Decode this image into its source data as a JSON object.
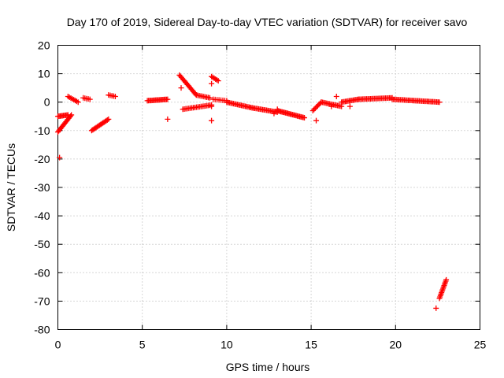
{
  "chart_data": {
    "type": "scatter",
    "title": "Day 170 of 2019, Sidereal Day-to-day VTEC variation (SDTVAR) for receiver savo",
    "xlabel": "GPS time / hours",
    "ylabel": "SDTVAR / TECUs",
    "xlim": [
      0,
      25
    ],
    "ylim": [
      -80,
      20
    ],
    "xticks": [
      0,
      5,
      10,
      15,
      20,
      25
    ],
    "yticks": [
      20,
      10,
      0,
      -10,
      -20,
      -30,
      -40,
      -50,
      -60,
      -70,
      -80
    ],
    "xtick_labels": [
      "0",
      "5",
      "10",
      "15",
      "20",
      "25"
    ],
    "ytick_labels": [
      "20",
      "10",
      "0",
      "-10",
      "-20",
      "-30",
      "-40",
      "-50",
      "-60",
      "-70",
      "-80"
    ],
    "grid": true,
    "marker": "+",
    "color": "#ff0000",
    "series": [
      {
        "name": "SDTVAR",
        "segments": [
          {
            "x": [
              0.0,
              0.8
            ],
            "y": [
              -10.5,
              -4.5
            ],
            "n": 16
          },
          {
            "x": [
              0.0,
              0.6
            ],
            "y": [
              -5.0,
              -4.5
            ],
            "n": 10
          },
          {
            "x": [
              0.6,
              1.2
            ],
            "y": [
              2.0,
              0.0
            ],
            "n": 8
          },
          {
            "x": [
              1.5,
              1.9
            ],
            "y": [
              1.5,
              1.0
            ],
            "n": 5
          },
          {
            "x": [
              2.0,
              3.0
            ],
            "y": [
              -10.0,
              -6.0
            ],
            "n": 16
          },
          {
            "x": [
              3.0,
              3.4
            ],
            "y": [
              2.5,
              2.0
            ],
            "n": 5
          },
          {
            "x": [
              5.3,
              6.5
            ],
            "y": [
              0.5,
              1.0
            ],
            "n": 18
          },
          {
            "x": [
              7.2,
              8.2
            ],
            "y": [
              9.5,
              2.5
            ],
            "n": 18
          },
          {
            "x": [
              8.2,
              9.0
            ],
            "y": [
              2.5,
              1.5
            ],
            "n": 10
          },
          {
            "x": [
              7.4,
              9.1
            ],
            "y": [
              -2.5,
              -1.0
            ],
            "n": 20
          },
          {
            "x": [
              9.1,
              9.5
            ],
            "y": [
              9.0,
              7.5
            ],
            "n": 6
          },
          {
            "x": [
              9.2,
              10.0
            ],
            "y": [
              1.0,
              0.5
            ],
            "n": 8
          },
          {
            "x": [
              10.0,
              11.5
            ],
            "y": [
              0.0,
              -2.0
            ],
            "n": 20
          },
          {
            "x": [
              11.5,
              13.0
            ],
            "y": [
              -2.0,
              -3.5
            ],
            "n": 20
          },
          {
            "x": [
              13.0,
              14.6
            ],
            "y": [
              -3.0,
              -5.5
            ],
            "n": 24
          },
          {
            "x": [
              15.1,
              15.6
            ],
            "y": [
              -3.0,
              0.0
            ],
            "n": 8
          },
          {
            "x": [
              15.6,
              16.8
            ],
            "y": [
              0.0,
              -1.5
            ],
            "n": 16
          },
          {
            "x": [
              16.8,
              17.8
            ],
            "y": [
              0.0,
              1.0
            ],
            "n": 14
          },
          {
            "x": [
              17.8,
              19.8
            ],
            "y": [
              1.0,
              1.5
            ],
            "n": 26
          },
          {
            "x": [
              19.8,
              22.6
            ],
            "y": [
              1.0,
              0.0
            ],
            "n": 36
          },
          {
            "x": [
              22.6,
              23.0
            ],
            "y": [
              -69.0,
              -62.5
            ],
            "n": 14
          }
        ],
        "points": [
          {
            "x": 0.1,
            "y": -19.5
          },
          {
            "x": 6.5,
            "y": -6.0
          },
          {
            "x": 7.3,
            "y": 5.0
          },
          {
            "x": 9.1,
            "y": 6.5
          },
          {
            "x": 9.1,
            "y": -6.5
          },
          {
            "x": 9.1,
            "y": -1.5
          },
          {
            "x": 12.8,
            "y": -4.0
          },
          {
            "x": 13.0,
            "y": -2.5
          },
          {
            "x": 15.3,
            "y": -6.5
          },
          {
            "x": 16.2,
            "y": -1.5
          },
          {
            "x": 16.5,
            "y": 2.0
          },
          {
            "x": 17.3,
            "y": -1.5
          },
          {
            "x": 22.4,
            "y": -72.5
          }
        ]
      }
    ]
  }
}
